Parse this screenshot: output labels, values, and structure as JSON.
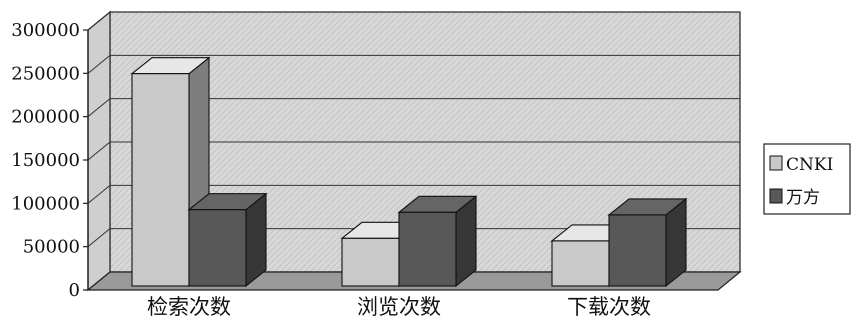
{
  "chart_data": {
    "type": "bar",
    "style": "3d-clustered-column",
    "categories": [
      "检索次数",
      "浏览次数",
      "下载次数"
    ],
    "series": [
      {
        "name": "CNKI",
        "values": [
          245000,
          55000,
          52000
        ],
        "color": "#c9c9c9"
      },
      {
        "name": "万方",
        "values": [
          88000,
          85000,
          82000
        ],
        "color": "#585858"
      }
    ],
    "y_ticks": [
      "0",
      "50000",
      "100000",
      "150000",
      "200000",
      "250000",
      "300000"
    ],
    "ylim": [
      0,
      300000
    ],
    "grid": true,
    "legend_position": "right",
    "title": "",
    "xlabel": "",
    "ylabel": ""
  }
}
